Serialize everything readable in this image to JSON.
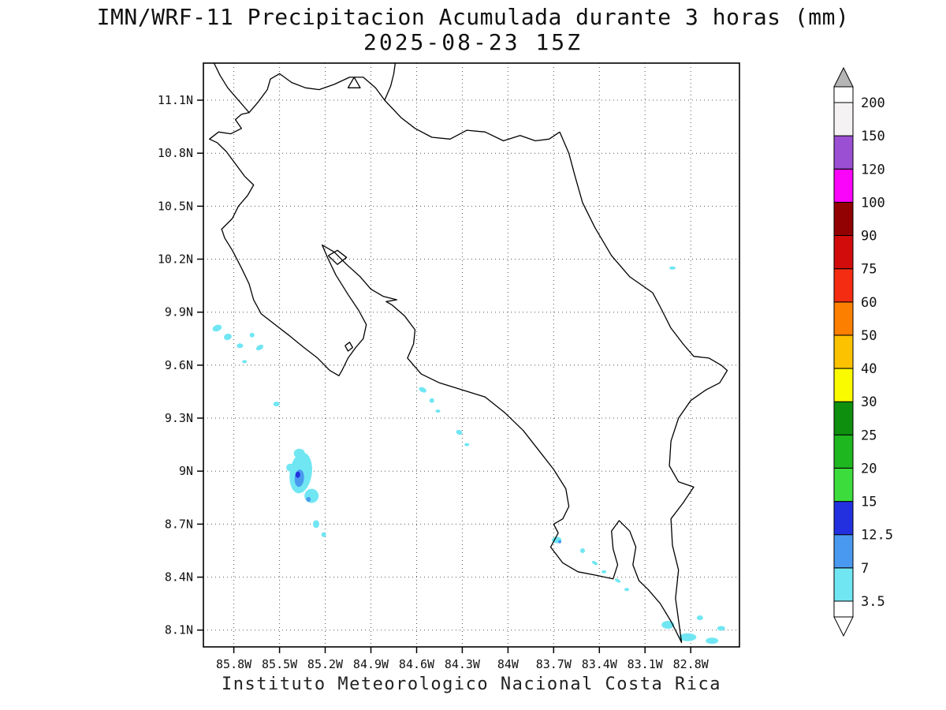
{
  "chart_data": {
    "type": "heatmap",
    "title": "IMN/WRF-11 Precipitacion Acumulada durante 3 horas (mm)",
    "subtitle": "2025-08-23 15Z",
    "footer": "Instituto Meteorologico Nacional Costa Rica",
    "units": "mm",
    "grid": "dotted",
    "lon_range_w": [
      86.0,
      82.48
    ],
    "lat_range_n": [
      8.005,
      11.31
    ],
    "x_ticks": {
      "values": [
        85.8,
        85.5,
        85.2,
        84.9,
        84.6,
        84.3,
        84.0,
        83.7,
        83.4,
        83.1,
        82.8
      ],
      "labels": [
        "85.8W",
        "85.5W",
        "85.2W",
        "84.9W",
        "84.6W",
        "84.3W",
        "84W",
        "83.7W",
        "83.4W",
        "83.1W",
        "82.8W"
      ]
    },
    "y_ticks": {
      "values": [
        11.1,
        10.8,
        10.5,
        10.2,
        9.9,
        9.6,
        9.3,
        9.0,
        8.7,
        8.4,
        8.1
      ],
      "labels": [
        "11.1N",
        "10.8N",
        "10.5N",
        "10.2N",
        "9.9N",
        "9.6N",
        "9.3N",
        "9N",
        "8.7N",
        "8.4N",
        "8.1N"
      ]
    },
    "colorbar": {
      "levels": [
        3.5,
        7,
        12.5,
        15,
        20,
        25,
        30,
        40,
        50,
        60,
        75,
        90,
        100,
        120,
        150,
        200
      ],
      "labels": [
        "3.5",
        "7",
        "12.5",
        "15",
        "20",
        "25",
        "30",
        "40",
        "50",
        "60",
        "75",
        "90",
        "100",
        "120",
        "150",
        "200"
      ],
      "interval_colors": [
        "#71e6f3",
        "#4a99f0",
        "#2330e0",
        "#3cdc3c",
        "#1fb71f",
        "#0e8f0e",
        "#fbfb00",
        "#fcc200",
        "#fc7f00",
        "#f32c12",
        "#d20b0b",
        "#920202",
        "#fa04fa",
        "#9b4fd3",
        "#f4f2f2"
      ],
      "below_color": "#ffffff",
      "above_segment_color": "#ffffff",
      "cap_color": "#b5b5b5"
    },
    "precip_cells_format": "[lonW, latN, rx_px, ry_px, rotation_deg, color_level_index]",
    "precip_cells": [
      [
        85.91,
        9.81,
        6,
        4,
        -20,
        0
      ],
      [
        85.84,
        9.76,
        5,
        4,
        -20,
        0
      ],
      [
        85.76,
        9.71,
        4,
        3,
        0,
        0
      ],
      [
        85.68,
        9.77,
        3,
        3,
        0,
        0
      ],
      [
        85.63,
        9.7,
        5,
        3,
        -30,
        0
      ],
      [
        85.73,
        9.62,
        3,
        2,
        0,
        0
      ],
      [
        85.52,
        9.38,
        4,
        3,
        0,
        0
      ],
      [
        85.37,
        9.1,
        7,
        6,
        0,
        0
      ],
      [
        85.36,
        8.99,
        14,
        26,
        8,
        0
      ],
      [
        85.29,
        8.86,
        9,
        9,
        0,
        0
      ],
      [
        85.43,
        9.02,
        5,
        5,
        0,
        0
      ],
      [
        85.37,
        8.96,
        6,
        11,
        5,
        1
      ],
      [
        85.38,
        8.98,
        3,
        4,
        0,
        2
      ],
      [
        85.31,
        8.84,
        3,
        3,
        0,
        1
      ],
      [
        85.26,
        8.7,
        4,
        5,
        0,
        0
      ],
      [
        85.21,
        8.64,
        3,
        3,
        0,
        0
      ],
      [
        84.56,
        9.46,
        5,
        3,
        25,
        0
      ],
      [
        84.5,
        9.4,
        3,
        3,
        0,
        0
      ],
      [
        84.46,
        9.34,
        3,
        2,
        0,
        0
      ],
      [
        84.32,
        9.22,
        4,
        3,
        20,
        0
      ],
      [
        84.27,
        9.15,
        3,
        2,
        0,
        0
      ],
      [
        83.68,
        8.61,
        6,
        4,
        0,
        0
      ],
      [
        83.66,
        8.6,
        2,
        2,
        0,
        1
      ],
      [
        83.51,
        8.55,
        3,
        3,
        0,
        0
      ],
      [
        83.43,
        8.48,
        4,
        2,
        30,
        0
      ],
      [
        83.37,
        8.43,
        3,
        2,
        0,
        0
      ],
      [
        83.28,
        8.38,
        4,
        2,
        30,
        0
      ],
      [
        83.22,
        8.33,
        3,
        2,
        0,
        0
      ],
      [
        82.95,
        8.13,
        8,
        5,
        0,
        0
      ],
      [
        82.82,
        8.06,
        11,
        5,
        0,
        0
      ],
      [
        82.66,
        8.04,
        8,
        4,
        0,
        0
      ],
      [
        82.6,
        8.11,
        5,
        3,
        0,
        0
      ],
      [
        82.74,
        8.17,
        4,
        3,
        0,
        0
      ],
      [
        82.92,
        10.15,
        4,
        2,
        0,
        0
      ]
    ],
    "coastline": [
      [
        [
          85.93,
          11.31
        ],
        [
          85.89,
          11.24
        ],
        [
          85.84,
          11.17
        ],
        [
          85.78,
          11.11
        ],
        [
          85.73,
          11.06
        ],
        [
          85.7,
          11.03
        ],
        [
          85.64,
          11.09
        ],
        [
          85.58,
          11.16
        ],
        [
          85.56,
          11.22
        ],
        [
          85.5,
          11.25
        ],
        [
          85.42,
          11.2
        ],
        [
          85.33,
          11.17
        ],
        [
          85.24,
          11.16
        ],
        [
          85.14,
          11.19
        ],
        [
          85.04,
          11.23
        ],
        [
          84.95,
          11.23
        ],
        [
          84.87,
          11.17
        ],
        [
          84.81,
          11.1
        ],
        [
          84.7,
          11.0
        ],
        [
          84.61,
          10.94
        ],
        [
          84.5,
          10.89
        ],
        [
          84.38,
          10.88
        ],
        [
          84.27,
          10.93
        ],
        [
          84.15,
          10.92
        ],
        [
          84.03,
          10.87
        ],
        [
          83.92,
          10.9
        ],
        [
          83.82,
          10.87
        ],
        [
          83.73,
          10.88
        ],
        [
          83.66,
          10.92
        ]
      ],
      [
        [
          84.81,
          11.1
        ],
        [
          84.77,
          11.18
        ],
        [
          84.75,
          11.25
        ],
        [
          84.74,
          11.31
        ]
      ],
      [
        [
          85.01,
          11.23
        ],
        [
          84.97,
          11.17
        ],
        [
          85.05,
          11.17
        ],
        [
          85.01,
          11.23
        ]
      ],
      [
        [
          83.66,
          10.92
        ],
        [
          83.6,
          10.8
        ],
        [
          83.56,
          10.67
        ],
        [
          83.51,
          10.52
        ],
        [
          83.43,
          10.38
        ],
        [
          83.32,
          10.22
        ],
        [
          83.2,
          10.1
        ],
        [
          83.05,
          10.01
        ],
        [
          83.0,
          9.93
        ],
        [
          82.93,
          9.81
        ],
        [
          82.85,
          9.72
        ],
        [
          82.78,
          9.65
        ],
        [
          82.68,
          9.64
        ],
        [
          82.6,
          9.6
        ],
        [
          82.56,
          9.57
        ],
        [
          82.61,
          9.5
        ],
        [
          82.7,
          9.46
        ],
        [
          82.8,
          9.4
        ],
        [
          82.88,
          9.3
        ],
        [
          82.93,
          9.17
        ],
        [
          82.94,
          9.03
        ],
        [
          82.88,
          8.94
        ],
        [
          82.78,
          8.91
        ],
        [
          82.85,
          8.82
        ],
        [
          82.93,
          8.73
        ],
        [
          82.92,
          8.58
        ],
        [
          82.88,
          8.44
        ],
        [
          82.9,
          8.28
        ],
        [
          82.86,
          8.03
        ],
        [
          82.93,
          8.15
        ],
        [
          83.0,
          8.25
        ],
        [
          83.08,
          8.33
        ],
        [
          83.14,
          8.38
        ],
        [
          83.18,
          8.47
        ],
        [
          83.16,
          8.57
        ],
        [
          83.2,
          8.66
        ],
        [
          83.27,
          8.72
        ],
        [
          83.32,
          8.66
        ],
        [
          83.31,
          8.56
        ],
        [
          83.28,
          8.47
        ],
        [
          83.31,
          8.39
        ],
        [
          83.42,
          8.41
        ],
        [
          83.54,
          8.43
        ],
        [
          83.64,
          8.48
        ],
        [
          83.72,
          8.57
        ],
        [
          83.67,
          8.65
        ],
        [
          83.7,
          8.7
        ],
        [
          83.64,
          8.73
        ],
        [
          83.6,
          8.8
        ],
        [
          83.62,
          8.9
        ],
        [
          83.7,
          9.01
        ],
        [
          83.8,
          9.12
        ],
        [
          83.9,
          9.23
        ],
        [
          84.02,
          9.33
        ],
        [
          84.15,
          9.42
        ],
        [
          84.3,
          9.46
        ],
        [
          84.45,
          9.5
        ],
        [
          84.57,
          9.55
        ],
        [
          84.66,
          9.64
        ],
        [
          84.62,
          9.72
        ],
        [
          84.61,
          9.8
        ],
        [
          84.68,
          9.88
        ],
        [
          84.76,
          9.94
        ],
        [
          84.8,
          9.96
        ],
        [
          84.73,
          9.97
        ],
        [
          84.82,
          9.99
        ],
        [
          84.9,
          10.03
        ],
        [
          84.97,
          10.1
        ],
        [
          85.06,
          10.17
        ],
        [
          85.14,
          10.24
        ],
        [
          85.22,
          10.28
        ],
        [
          85.18,
          10.2
        ],
        [
          85.13,
          10.11
        ],
        [
          85.05,
          10.0
        ],
        [
          84.98,
          9.91
        ],
        [
          84.93,
          9.83
        ],
        [
          84.95,
          9.75
        ],
        [
          85.0,
          9.7
        ],
        [
          85.05,
          9.64
        ],
        [
          85.09,
          9.57
        ],
        [
          85.11,
          9.54
        ],
        [
          85.17,
          9.57
        ],
        [
          85.25,
          9.64
        ],
        [
          85.34,
          9.7
        ],
        [
          85.44,
          9.77
        ],
        [
          85.53,
          9.83
        ],
        [
          85.62,
          9.89
        ],
        [
          85.67,
          9.97
        ],
        [
          85.7,
          10.06
        ],
        [
          85.75,
          10.15
        ],
        [
          85.81,
          10.25
        ],
        [
          85.86,
          10.32
        ],
        [
          85.88,
          10.37
        ],
        [
          85.81,
          10.43
        ],
        [
          85.77,
          10.5
        ],
        [
          85.71,
          10.56
        ],
        [
          85.67,
          10.62
        ],
        [
          85.73,
          10.67
        ],
        [
          85.79,
          10.74
        ],
        [
          85.85,
          10.81
        ],
        [
          85.91,
          10.86
        ],
        [
          85.96,
          10.88
        ],
        [
          85.9,
          10.92
        ],
        [
          85.82,
          10.91
        ],
        [
          85.75,
          10.94
        ],
        [
          85.79,
          10.99
        ],
        [
          85.75,
          11.02
        ],
        [
          85.7,
          11.03
        ]
      ],
      [
        [
          85.18,
          10.22
        ],
        [
          85.12,
          10.25
        ],
        [
          85.06,
          10.21
        ],
        [
          85.12,
          10.17
        ],
        [
          85.18,
          10.22
        ]
      ],
      [
        [
          85.07,
          9.71
        ],
        [
          85.04,
          9.73
        ],
        [
          85.02,
          9.7
        ],
        [
          85.05,
          9.68
        ],
        [
          85.07,
          9.71
        ]
      ]
    ]
  }
}
